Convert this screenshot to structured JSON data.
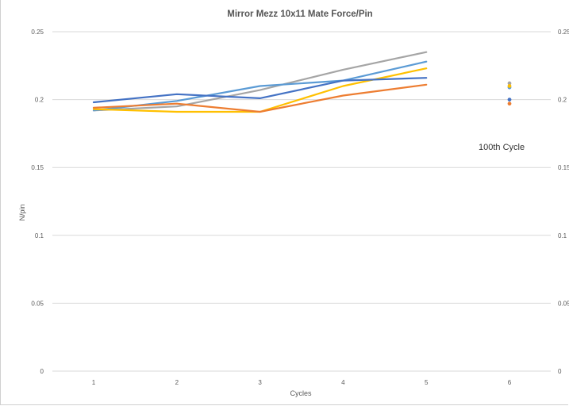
{
  "chart_data": {
    "type": "line",
    "title": "Mirror Mezz 10x11 Mate Force/Pin",
    "xlabel": "Cycles",
    "ylabel": "N/pin",
    "categories": [
      "1",
      "2",
      "3",
      "4",
      "5",
      "6"
    ],
    "ylim": [
      0,
      0.25
    ],
    "yticks": [
      "0",
      "0.05",
      "0.1",
      "0.15",
      "0.2",
      "0.25"
    ],
    "secondary_y_ticks": [
      "0",
      "0.05",
      "0.1",
      "0.15",
      "0.2",
      "0.25"
    ],
    "grid": true,
    "annotation": "100th Cycle",
    "series": [
      {
        "color": "#a5a5a5",
        "values": [
          0.192,
          0.195,
          0.207,
          0.222,
          0.235,
          0.212
        ]
      },
      {
        "color": "#5b9bd5",
        "values": [
          0.192,
          0.199,
          0.21,
          0.214,
          0.228,
          0.209
        ]
      },
      {
        "color": "#ffc000",
        "values": [
          0.193,
          0.191,
          0.191,
          0.21,
          0.223,
          0.21
        ]
      },
      {
        "color": "#ed7d31",
        "values": [
          0.194,
          0.197,
          0.191,
          0.203,
          0.211,
          0.197
        ]
      },
      {
        "color": "#4472c4",
        "values": [
          0.198,
          0.204,
          0.201,
          0.214,
          0.216,
          0.2
        ]
      }
    ],
    "points_only_category": "6"
  }
}
